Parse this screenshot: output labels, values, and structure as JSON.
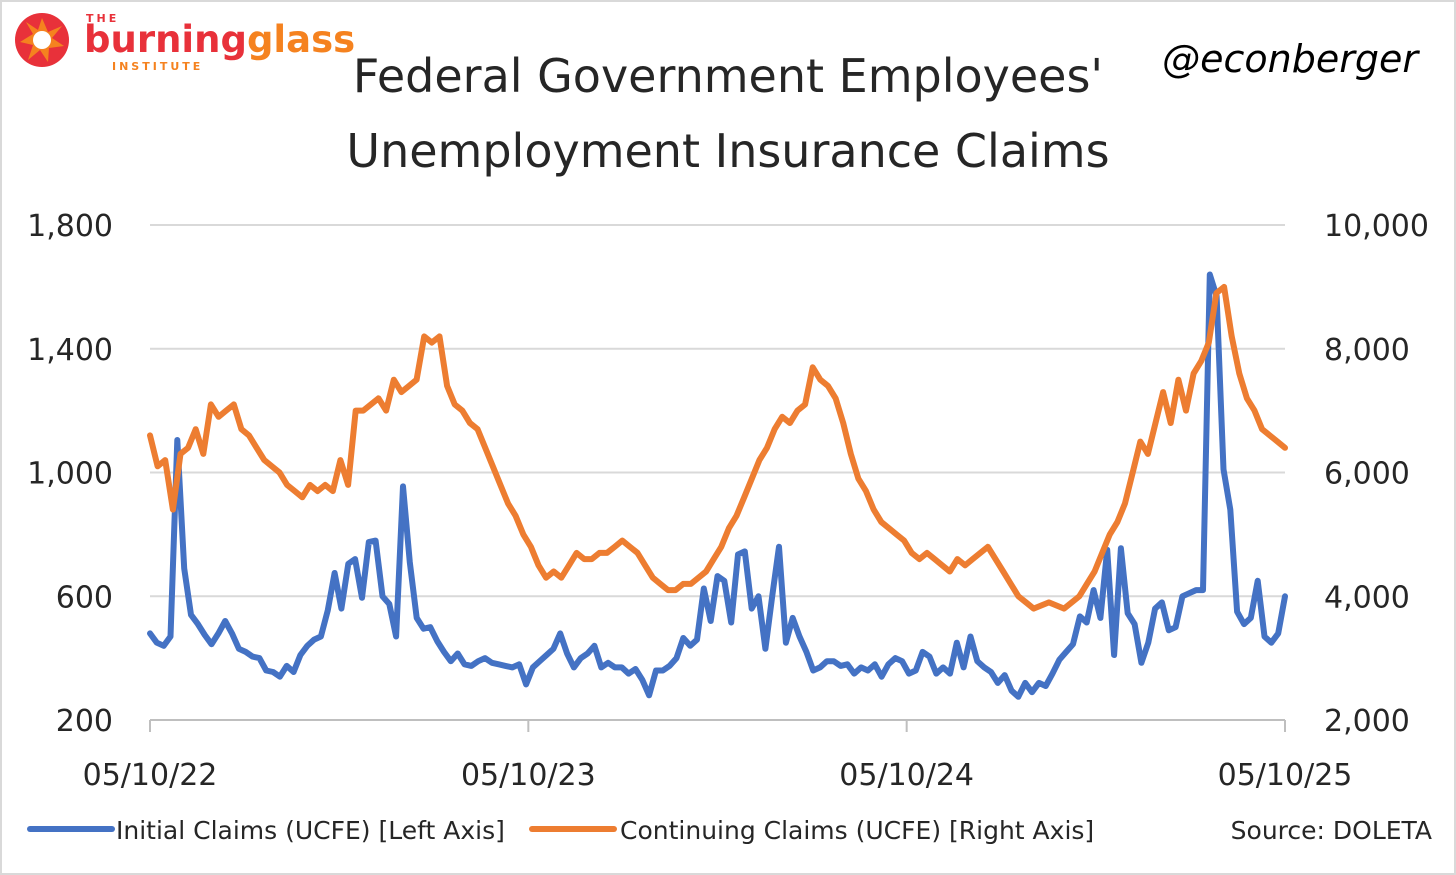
{
  "logo": {
    "the": "THE",
    "word_a": "burning",
    "word_b": "glass",
    "institute": "INSTITUTE",
    "color_primary": "#e8313a",
    "color_secondary": "#f5821f"
  },
  "handle": "@econberger",
  "source": "Source: DOLETA",
  "chart_data": {
    "type": "line",
    "title": [
      "Federal Government Employees'",
      "Unemployment Insurance Claims"
    ],
    "x_ticks": [
      "05/10/22",
      "05/10/23",
      "05/10/24",
      "05/10/25"
    ],
    "x_range": [
      "05/10/22",
      "05/10/25"
    ],
    "left_axis": {
      "ylim": [
        200,
        1800
      ],
      "ticks": [
        "1,800",
        "1,400",
        "1,000",
        "600",
        "200"
      ]
    },
    "right_axis": {
      "ylim": [
        2000,
        10000
      ],
      "ticks": [
        "10,000",
        "8,000",
        "6,000",
        "4,000",
        "2,000"
      ]
    },
    "grid": true,
    "legend_position": "bottom",
    "series": [
      {
        "name": "Initial Claims (UCFE) [Left Axis]",
        "axis": "left",
        "color": "#4472c4",
        "values": [
          480,
          450,
          440,
          470,
          1105,
          690,
          540,
          510,
          475,
          445,
          480,
          520,
          480,
          430,
          420,
          405,
          400,
          360,
          355,
          340,
          375,
          355,
          410,
          440,
          460,
          470,
          555,
          675,
          560,
          705,
          720,
          595,
          775,
          780,
          600,
          575,
          470,
          955,
          710,
          530,
          495,
          500,
          455,
          420,
          390,
          415,
          380,
          375,
          390,
          400,
          385,
          380,
          375,
          370,
          380,
          315,
          370,
          390,
          410,
          430,
          480,
          415,
          370,
          400,
          415,
          440,
          370,
          385,
          370,
          370,
          350,
          365,
          330,
          280,
          360,
          360,
          375,
          400,
          465,
          440,
          460,
          625,
          520,
          665,
          650,
          515,
          735,
          745,
          560,
          600,
          430,
          600,
          760,
          450,
          530,
          470,
          420,
          360,
          370,
          390,
          390,
          375,
          380,
          350,
          370,
          360,
          380,
          340,
          380,
          400,
          390,
          350,
          360,
          420,
          405,
          350,
          370,
          350,
          450,
          370,
          470,
          390,
          370,
          355,
          320,
          345,
          295,
          275,
          320,
          290,
          320,
          310,
          350,
          395,
          420,
          445,
          535,
          515,
          620,
          530,
          750,
          410,
          755,
          545,
          510,
          385,
          450,
          560,
          580,
          490,
          500,
          600,
          610,
          620,
          620,
          1640,
          1570,
          1010,
          880,
          550,
          510,
          530,
          650,
          470,
          450,
          480,
          600
        ]
      },
      {
        "name": "Continuing Claims (UCFE) [Right Axis]",
        "axis": "right",
        "color": "#ed7d31",
        "values": [
          6600,
          6100,
          6200,
          5400,
          6300,
          6400,
          6700,
          6300,
          7100,
          6900,
          7000,
          7100,
          6700,
          6600,
          6400,
          6200,
          6100,
          6000,
          5800,
          5700,
          5600,
          5800,
          5700,
          5800,
          5700,
          6200,
          5800,
          7000,
          7000,
          7100,
          7200,
          7000,
          7500,
          7300,
          7400,
          7500,
          8200,
          8100,
          8200,
          7400,
          7100,
          7000,
          6800,
          6700,
          6400,
          6100,
          5800,
          5500,
          5300,
          5000,
          4800,
          4500,
          4300,
          4400,
          4300,
          4500,
          4700,
          4600,
          4600,
          4700,
          4700,
          4800,
          4900,
          4800,
          4700,
          4500,
          4300,
          4200,
          4100,
          4100,
          4200,
          4200,
          4300,
          4400,
          4600,
          4800,
          5100,
          5300,
          5600,
          5900,
          6200,
          6400,
          6700,
          6900,
          6800,
          7000,
          7100,
          7700,
          7500,
          7400,
          7200,
          6800,
          6300,
          5900,
          5700,
          5400,
          5200,
          5100,
          5000,
          4900,
          4700,
          4600,
          4700,
          4600,
          4500,
          4400,
          4600,
          4500,
          4600,
          4700,
          4800,
          4600,
          4400,
          4200,
          4000,
          3900,
          3800,
          3850,
          3900,
          3850,
          3800,
          3900,
          4000,
          4200,
          4400,
          4700,
          5000,
          5200,
          5500,
          6000,
          6500,
          6300,
          6800,
          7300,
          6800,
          7500,
          7000,
          7600,
          7800,
          8100,
          8900,
          9000,
          8200,
          7600,
          7200,
          7000,
          6700,
          6600,
          6500,
          6400
        ]
      }
    ]
  }
}
